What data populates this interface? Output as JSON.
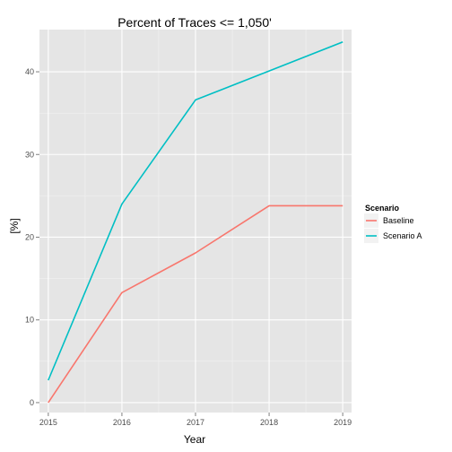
{
  "chart_data": {
    "type": "line",
    "title": "Percent of Traces <= 1,050'",
    "xlabel": "Year",
    "ylabel": "[%]",
    "x": [
      2015,
      2016,
      2017,
      2018,
      2019
    ],
    "xlim": [
      2014.88,
      2019.12
    ],
    "ylim": [
      -1.2,
      45.1
    ],
    "x_ticks": [
      2015,
      2016,
      2017,
      2018,
      2019
    ],
    "y_ticks": [
      0,
      10,
      20,
      30,
      40
    ],
    "grid": true,
    "legend": {
      "title": "Scenario",
      "position": "right"
    },
    "series": [
      {
        "name": "Baseline",
        "color": "#F8766D",
        "values": [
          0,
          13.3,
          18.1,
          23.8,
          23.8
        ]
      },
      {
        "name": "Scenario A",
        "color": "#00BFC4",
        "values": [
          2.7,
          24.0,
          36.6,
          40.1,
          43.6
        ]
      }
    ]
  }
}
